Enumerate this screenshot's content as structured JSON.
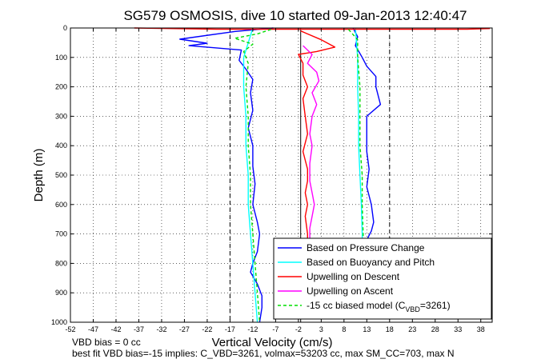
{
  "chart_data": {
    "type": "line",
    "title": "SG579 OSMOSIS, dive 10 started 09-Jan-2013 12:40:47",
    "xlabel": "Vertical Velocity (cm/s)",
    "ylabel": "Depth (m)",
    "xlim": [
      -52,
      40.5
    ],
    "ylim": [
      1000,
      0
    ],
    "x_ticks": [
      -52,
      -47,
      -42,
      -37,
      -32,
      -27,
      -22,
      -17,
      -12,
      -7,
      -2,
      3,
      8,
      13,
      18,
      23,
      28,
      33,
      38
    ],
    "y_ticks": [
      0,
      100,
      200,
      300,
      400,
      500,
      600,
      700,
      800,
      900,
      1000
    ],
    "grid": true,
    "legend_position": "bottom-right",
    "reference_lines": [
      {
        "style": "dashed",
        "x": -17
      },
      {
        "style": "dashed",
        "x": 18
      },
      {
        "style": "solid",
        "x": -1.5
      }
    ],
    "series": [
      {
        "name": "Based on Pressure Change",
        "color": "#0000ff",
        "style": "solid",
        "points": [
          [
            [
              -7.5,
              0
            ],
            [
              -16,
              12
            ],
            [
              -28,
              38
            ],
            [
              -22,
              52
            ],
            [
              -26,
              60
            ],
            [
              -14.5,
              75
            ],
            [
              -15,
              110
            ],
            [
              -13.5,
              140
            ],
            [
              -12,
              175
            ],
            [
              -12.5,
              220
            ],
            [
              -12,
              280
            ],
            [
              -13,
              340
            ],
            [
              -12,
              400
            ],
            [
              -12,
              470
            ],
            [
              -11.5,
              530
            ],
            [
              -12,
              600
            ],
            [
              -11,
              660
            ],
            [
              -10.5,
              700
            ],
            [
              -11,
              760
            ],
            [
              -12,
              800
            ],
            [
              -12.5,
              830
            ],
            [
              -11,
              870
            ],
            [
              -10,
              910
            ],
            [
              -10,
              950
            ],
            [
              -10.5,
              1000
            ]
          ],
          [
            [
              10,
              0
            ],
            [
              11,
              30
            ],
            [
              10.5,
              60
            ],
            [
              12,
              100
            ],
            [
              13,
              130
            ],
            [
              15,
              165
            ],
            [
              15,
              200
            ],
            [
              16,
              260
            ],
            [
              13,
              300
            ],
            [
              13,
              360
            ],
            [
              13,
              420
            ],
            [
              13.5,
              480
            ],
            [
              13,
              540
            ],
            [
              14,
              600
            ],
            [
              14.5,
              660
            ],
            [
              14,
              690
            ],
            [
              13,
              720
            ],
            [
              12.5,
              740
            ]
          ]
        ]
      },
      {
        "name": "Based on Buoyancy and Pitch",
        "color": "#00ffff",
        "style": "solid",
        "points": [
          [
            [
              -12,
              0
            ],
            [
              -13,
              50
            ],
            [
              -14,
              100
            ],
            [
              -14,
              200
            ],
            [
              -13.5,
              300
            ],
            [
              -13.5,
              400
            ],
            [
              -13,
              500
            ],
            [
              -13,
              600
            ],
            [
              -12.5,
              700
            ],
            [
              -12,
              800
            ],
            [
              -11.5,
              900
            ],
            [
              -11,
              1000
            ]
          ],
          [
            [
              10.5,
              0
            ],
            [
              11,
              100
            ],
            [
              11,
              200
            ],
            [
              11.2,
              300
            ],
            [
              11.2,
              400
            ],
            [
              11.5,
              500
            ],
            [
              11.8,
              600
            ],
            [
              12,
              700
            ],
            [
              12,
              740
            ]
          ]
        ]
      },
      {
        "name": "Upwelling on Descent",
        "color": "#ff0000",
        "style": "solid",
        "points": [
          [
            [
              -38,
              0
            ],
            [
              -20,
              4
            ],
            [
              35,
              4
            ],
            [
              40,
              2
            ]
          ],
          [
            [
              -1.5,
              10
            ],
            [
              3,
              40
            ],
            [
              6,
              65
            ],
            [
              2,
              80
            ],
            [
              -2,
              90
            ],
            [
              -1,
              120
            ],
            [
              -1,
              160
            ],
            [
              0,
              200
            ],
            [
              -1,
              240
            ],
            [
              -0.5,
              300
            ],
            [
              0,
              360
            ],
            [
              -1,
              420
            ],
            [
              0,
              480
            ],
            [
              0,
              520
            ],
            [
              -0.5,
              560
            ],
            [
              0,
              600
            ],
            [
              -0.5,
              640
            ],
            [
              0,
              700
            ],
            [
              0,
              720
            ]
          ]
        ]
      },
      {
        "name": "Upwelling on Ascent",
        "color": "#ff00ff",
        "style": "solid",
        "points": [
          [
            [
              -1,
              60
            ],
            [
              1,
              90
            ],
            [
              0,
              120
            ],
            [
              2,
              150
            ],
            [
              2.5,
              180
            ],
            [
              1,
              220
            ],
            [
              2,
              260
            ],
            [
              1,
              300
            ],
            [
              0.5,
              360
            ],
            [
              1,
              400
            ],
            [
              0.5,
              460
            ],
            [
              0.5,
              520
            ],
            [
              1,
              560
            ],
            [
              1.5,
              600
            ],
            [
              1,
              640
            ],
            [
              0.5,
              680
            ],
            [
              0.5,
              720
            ]
          ]
        ]
      },
      {
        "name": "-15 cc biased model (C",
        "color": "#00dd00",
        "style": "dashed",
        "points": [
          [
            [
              -8,
              5
            ],
            [
              -11,
              20
            ],
            [
              -16,
              35
            ],
            [
              -12,
              55
            ],
            [
              -14,
              80
            ],
            [
              -13,
              120
            ],
            [
              -13.5,
              200
            ],
            [
              -13,
              300
            ],
            [
              -13,
              400
            ],
            [
              -12.5,
              500
            ],
            [
              -12.5,
              600
            ],
            [
              -12,
              700
            ],
            [
              -11.5,
              800
            ],
            [
              -11,
              900
            ],
            [
              -10.5,
              1000
            ]
          ],
          [
            [
              9,
              5
            ],
            [
              11,
              40
            ],
            [
              11,
              100
            ],
            [
              11.5,
              200
            ],
            [
              11.5,
              300
            ],
            [
              11.5,
              400
            ],
            [
              12,
              500
            ],
            [
              12,
              600
            ],
            [
              12.2,
              700
            ],
            [
              12.2,
              740
            ]
          ]
        ]
      }
    ],
    "legend_model_sub": "VBD",
    "legend_model_tail": "=3261)",
    "footnotes": [
      "VBD bias = 0 cc",
      "best fit VBD bias=-15 implies: C_VBD=3261, volmax=53203 cc, max SM_CC=703, max N"
    ]
  }
}
